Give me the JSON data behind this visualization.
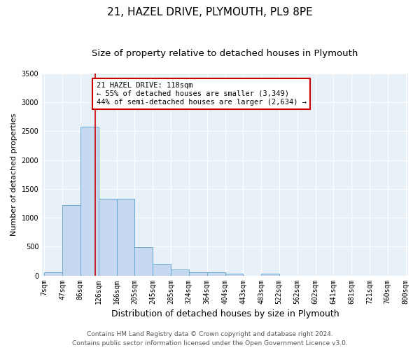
{
  "title": "21, HAZEL DRIVE, PLYMOUTH, PL9 8PE",
  "subtitle": "Size of property relative to detached houses in Plymouth",
  "xlabel": "Distribution of detached houses by size in Plymouth",
  "ylabel": "Number of detached properties",
  "footer_line1": "Contains HM Land Registry data © Crown copyright and database right 2024.",
  "footer_line2": "Contains public sector information licensed under the Open Government Licence v3.0.",
  "property_label": "21 HAZEL DRIVE: 118sqm",
  "annotation_line1": "← 55% of detached houses are smaller (3,349)",
  "annotation_line2": "44% of semi-detached houses are larger (2,634) →",
  "property_size": 118,
  "bar_edges": [
    7,
    47,
    86,
    126,
    166,
    205,
    245,
    285,
    324,
    364,
    404,
    443,
    483,
    522,
    562,
    602,
    641,
    681,
    721,
    760,
    800
  ],
  "bar_heights": [
    50,
    1220,
    2580,
    1330,
    1330,
    495,
    195,
    105,
    50,
    50,
    35,
    0,
    35,
    0,
    0,
    0,
    0,
    0,
    0,
    0
  ],
  "bar_color": "#c5d8f0",
  "bar_edge_color": "#6aaad4",
  "line_color": "#cc0000",
  "background_color": "#e8f0f8",
  "grid_color": "#ffffff",
  "ylim": [
    0,
    3500
  ],
  "annotation_box_color": "#cc0000",
  "title_fontsize": 11,
  "subtitle_fontsize": 9.5,
  "xlabel_fontsize": 9,
  "ylabel_fontsize": 8,
  "tick_fontsize": 7,
  "annotation_fontsize": 7.5,
  "footer_fontsize": 6.5
}
